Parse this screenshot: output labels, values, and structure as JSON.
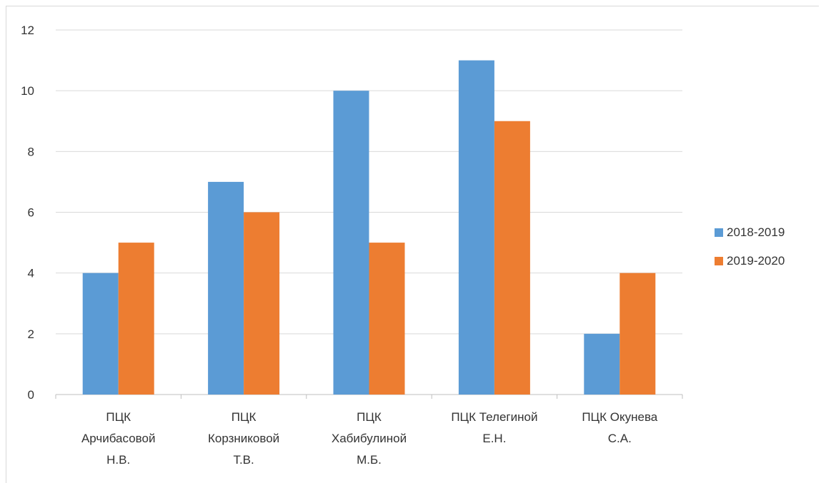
{
  "chart_data": {
    "type": "bar",
    "title": "",
    "xlabel": "",
    "ylabel": "",
    "ylim": [
      0,
      12
    ],
    "yticks": [
      0,
      2,
      4,
      6,
      8,
      10,
      12
    ],
    "grid": true,
    "legend_position": "right",
    "categories": [
      [
        "ПЦК",
        "Арчибасовой",
        "Н.В."
      ],
      [
        "ПЦК",
        "Корзниковой",
        "Т.В."
      ],
      [
        "ПЦК",
        "Хабибулиной",
        "М.Б."
      ],
      [
        "ПЦК Телегиной",
        "Е.Н."
      ],
      [
        "ПЦК Окунева",
        "С.А."
      ]
    ],
    "series": [
      {
        "name": "2018-2019",
        "color": "#5b9bd5",
        "values": [
          4,
          7,
          10,
          11,
          2
        ]
      },
      {
        "name": "2019-2020",
        "color": "#ed7d31",
        "values": [
          5,
          6,
          5,
          9,
          4
        ]
      }
    ]
  }
}
